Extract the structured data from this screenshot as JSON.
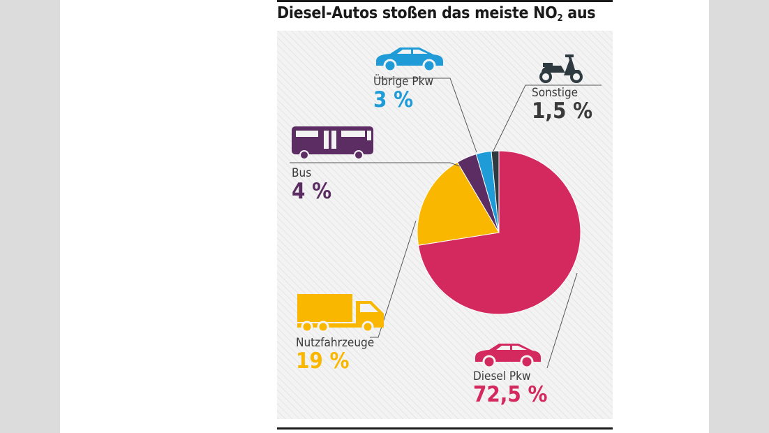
{
  "title": {
    "main": "Diesel-Autos stoßen das meiste NO",
    "sub": "2",
    "tail": " aus"
  },
  "colors": {
    "diesel_pkw": "#d4295f",
    "nutzfahrzeuge": "#f9b700",
    "bus": "#5c2d62",
    "uebrige_pkw": "#1f9bd7",
    "sonstige": "#2f3a40",
    "background": "#f2f2f2",
    "text_dark": "#3a3a3a"
  },
  "icons": {
    "uebrige_pkw": "car-icon",
    "sonstige": "scooter-icon",
    "bus": "bus-icon",
    "nutzfahrzeuge": "truck-icon",
    "diesel_pkw": "car-icon"
  },
  "chart_data": {
    "type": "pie",
    "title": "Diesel-Autos stoßen das meiste NO2 aus",
    "start": "12 o'clock, clockwise",
    "slices": [
      {
        "key": "diesel_pkw",
        "label": "Diesel Pkw",
        "value": 72.5,
        "value_label": "72,5 %",
        "color": "#d4295f"
      },
      {
        "key": "nutzfahrzeuge",
        "label": "Nutzfahrzeuge",
        "value": 19,
        "value_label": "19 %",
        "color": "#f9b700"
      },
      {
        "key": "bus",
        "label": "Bus",
        "value": 4,
        "value_label": "4 %",
        "color": "#5c2d62"
      },
      {
        "key": "uebrige_pkw",
        "label": "Übrige Pkw",
        "value": 3,
        "value_label": "3 %",
        "color": "#1f9bd7"
      },
      {
        "key": "sonstige",
        "label": "Sonstige",
        "value": 1.5,
        "value_label": "1,5 %",
        "color": "#2f3a40"
      }
    ]
  }
}
